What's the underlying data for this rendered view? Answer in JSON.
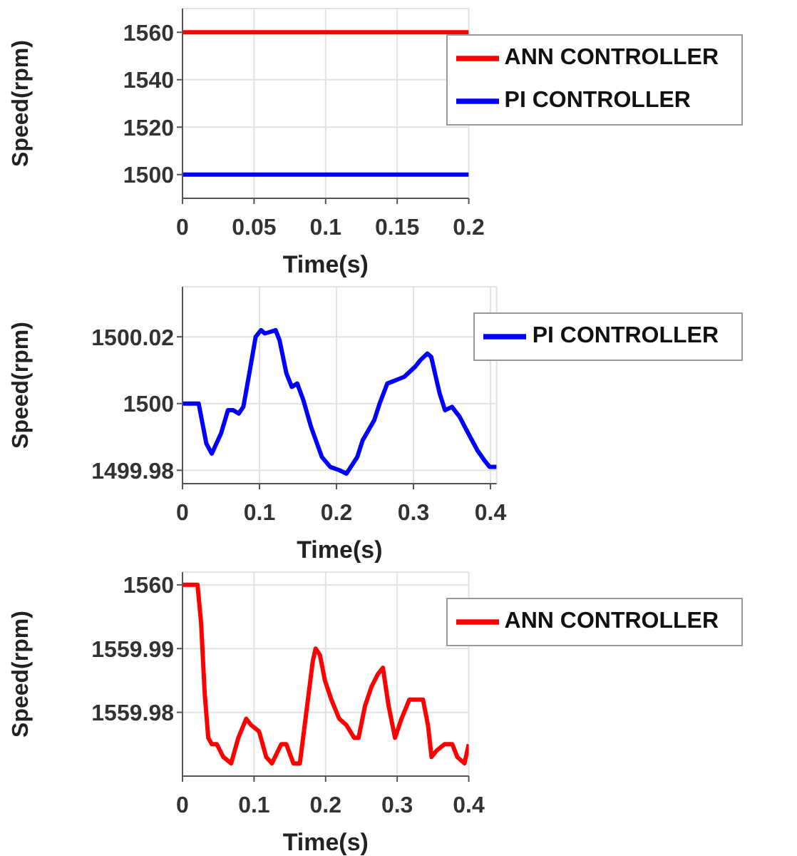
{
  "chart_data": [
    {
      "type": "line",
      "xlabel": "Time(s)",
      "ylabel": "Speed(rpm)",
      "x": [
        0,
        0.2
      ],
      "xlim": [
        0,
        0.2
      ],
      "xticks": [
        0,
        0.05,
        0.1,
        0.15,
        0.2
      ],
      "ylim": [
        1490,
        1570
      ],
      "yticks": [
        1500,
        1520,
        1540,
        1560
      ],
      "grid": true,
      "legend": "top right",
      "marker": "none",
      "line_style": "solid",
      "series": [
        {
          "name": "PI CONTROLLER",
          "color": "#0000ff",
          "values": [
            1500,
            1500
          ]
        },
        {
          "name": "ANN CONTROLLER",
          "color": "#ff0000",
          "values": [
            1560,
            1560
          ]
        }
      ]
    },
    {
      "type": "line",
      "xlabel": "Time(s)",
      "ylabel": "Speed(rpm)",
      "xlim": [
        0,
        0.408
      ],
      "xticks": [
        0,
        0.1,
        0.2,
        0.3,
        0.4
      ],
      "ylim": [
        1499.976,
        1500.035
      ],
      "yticks": [
        1499.98,
        1500,
        1500.02
      ],
      "grid": true,
      "legend": "top right",
      "marker": "none",
      "line_style": "solid",
      "x": [
        0,
        0.021,
        0.031,
        0.038,
        0.05,
        0.059,
        0.066,
        0.073,
        0.079,
        0.086,
        0.095,
        0.102,
        0.107,
        0.121,
        0.126,
        0.135,
        0.142,
        0.149,
        0.157,
        0.167,
        0.181,
        0.192,
        0.204,
        0.213,
        0.227,
        0.234,
        0.249,
        0.256,
        0.266,
        0.277,
        0.288,
        0.302,
        0.309,
        0.318,
        0.323,
        0.334,
        0.341,
        0.35,
        0.36,
        0.369,
        0.383,
        0.392,
        0.399,
        0.408
      ],
      "series": [
        {
          "name": "PI CONTROLLER",
          "color": "#0000ff",
          "values": [
            1500,
            1500,
            1499.988,
            1499.985,
            1499.991,
            1499.998,
            1499.998,
            1499.997,
            1499.999,
            1500.008,
            1500.02,
            1500.022,
            1500.021,
            1500.022,
            1500.019,
            1500.009,
            1500.005,
            1500.006,
            1500.001,
            1499.993,
            1499.984,
            1499.981,
            1499.98,
            1499.979,
            1499.984,
            1499.989,
            1499.995,
            1500,
            1500.006,
            1500.007,
            1500.008,
            1500.011,
            1500.013,
            1500.015,
            1500.014,
            1500.003,
            1499.998,
            1499.999,
            1499.996,
            1499.992,
            1499.986,
            1499.983,
            1499.981,
            1499.981
          ]
        }
      ]
    },
    {
      "type": "line",
      "xlabel": "Time(s)",
      "ylabel": "Speed(rpm)",
      "xlim": [
        0,
        0.4
      ],
      "xticks": [
        0,
        0.1,
        0.2,
        0.3,
        0.4
      ],
      "ylim": [
        1559.97,
        1560.002
      ],
      "yticks": [
        1559.98,
        1559.99,
        1560
      ],
      "grid": true,
      "legend": "top right",
      "marker": "none",
      "line_style": "solid",
      "x": [
        0,
        0.021,
        0.026,
        0.031,
        0.036,
        0.041,
        0.048,
        0.057,
        0.068,
        0.078,
        0.089,
        0.096,
        0.107,
        0.117,
        0.125,
        0.138,
        0.145,
        0.155,
        0.164,
        0.173,
        0.182,
        0.186,
        0.192,
        0.199,
        0.208,
        0.219,
        0.229,
        0.24,
        0.246,
        0.255,
        0.264,
        0.273,
        0.28,
        0.288,
        0.297,
        0.306,
        0.317,
        0.324,
        0.336,
        0.343,
        0.348,
        0.355,
        0.366,
        0.377,
        0.384,
        0.394,
        0.4
      ],
      "series": [
        {
          "name": "ANN CONTROLLER",
          "color": "#ff0000",
          "values": [
            1560,
            1560,
            1559.994,
            1559.983,
            1559.976,
            1559.975,
            1559.975,
            1559.973,
            1559.972,
            1559.976,
            1559.979,
            1559.978,
            1559.977,
            1559.973,
            1559.972,
            1559.975,
            1559.975,
            1559.972,
            1559.972,
            1559.98,
            1559.988,
            1559.99,
            1559.989,
            1559.985,
            1559.982,
            1559.979,
            1559.978,
            1559.976,
            1559.976,
            1559.981,
            1559.984,
            1559.986,
            1559.987,
            1559.981,
            1559.976,
            1559.979,
            1559.982,
            1559.982,
            1559.982,
            1559.978,
            1559.973,
            1559.974,
            1559.975,
            1559.975,
            1559.973,
            1559.972,
            1559.975
          ]
        }
      ]
    }
  ]
}
